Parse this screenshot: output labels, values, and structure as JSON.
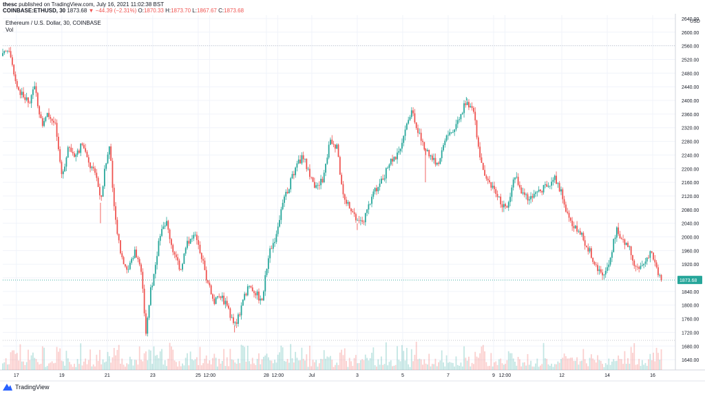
{
  "header": {
    "publisher": "thesc",
    "published_text": "published on TradingView.com, July 16, 2021 11:02:38 BST"
  },
  "quote": {
    "symbol": "COINBASE:ETHUSD, 30",
    "last": "1873.68",
    "change": "▼ −44.39 (−2.31%)",
    "open_label": "O:",
    "open": "1870.33",
    "high_label": "H:",
    "high": "1873.70",
    "low_label": "L:",
    "low": "1867.67",
    "close_label": "C:",
    "close": "1873.68"
  },
  "colors": {
    "up": "#26a69a",
    "down": "#ef5350",
    "grid": "#f0f3fa",
    "price_label_bg": "#26a69a"
  },
  "footer": {
    "brand": "TradingView",
    "logo_icon": "tradingview-logo-icon"
  },
  "chart_data": {
    "type": "candlestick",
    "title": "Ethereum / U.S. Dollar, 30, COINBASE",
    "volume_label": "Vol",
    "ylabel": "USD",
    "ylim": [
      1610,
      2650
    ],
    "y_ticks": [
      1640,
      1680,
      1720,
      1760,
      1800,
      1840,
      1880,
      1920,
      1960,
      2000,
      2040,
      2080,
      2120,
      2160,
      2200,
      2240,
      2280,
      2320,
      2360,
      2400,
      2440,
      2480,
      2520,
      2560,
      2600,
      2640
    ],
    "y_tick_labels": [
      "1640.00",
      "1680.00",
      "1720.00",
      "1760.00",
      "1800.00",
      "1840.00",
      "1880.00",
      "1920.00",
      "1960.00",
      "2000.00",
      "2040.00",
      "2080.00",
      "2120.00",
      "2160.00",
      "2200.00",
      "2240.00",
      "2280.00",
      "2320.00",
      "2360.00",
      "2400.00",
      "2440.00",
      "2480.00",
      "2520.00",
      "2560.00",
      "2600.00",
      "2640.00"
    ],
    "x_ticks": [
      {
        "label": "17",
        "t": 0.6
      },
      {
        "label": "19",
        "t": 2.6
      },
      {
        "label": "21",
        "t": 4.6
      },
      {
        "label": "23",
        "t": 6.6
      },
      {
        "label": "25",
        "t": 8.6
      },
      {
        "label": "12:00",
        "t": 9.1
      },
      {
        "label": "28",
        "t": 11.6
      },
      {
        "label": "12:00",
        "t": 12.1
      },
      {
        "label": "Jul",
        "t": 13.6
      },
      {
        "label": "3",
        "t": 15.6
      },
      {
        "label": "5",
        "t": 17.6
      },
      {
        "label": "7",
        "t": 19.6
      },
      {
        "label": "9",
        "t": 21.6
      },
      {
        "label": "12:00",
        "t": 22.1
      },
      {
        "label": "12",
        "t": 24.6
      },
      {
        "label": "14",
        "t": 26.6
      },
      {
        "label": "16",
        "t": 28.6
      }
    ],
    "x_range": [
      0,
      29.6
    ],
    "reference_lines": {
      "period_high": 2560,
      "last_close": 1873.68
    },
    "last_price_label": "1873.68",
    "price_path": [
      [
        0.0,
        2530
      ],
      [
        0.3,
        2555
      ],
      [
        0.6,
        2445
      ],
      [
        0.9,
        2410
      ],
      [
        1.2,
        2390
      ],
      [
        1.4,
        2450
      ],
      [
        1.7,
        2330
      ],
      [
        2.0,
        2360
      ],
      [
        2.3,
        2330
      ],
      [
        2.6,
        2180
      ],
      [
        2.9,
        2260
      ],
      [
        3.2,
        2240
      ],
      [
        3.5,
        2270
      ],
      [
        3.8,
        2210
      ],
      [
        4.1,
        2190
      ],
      [
        4.3,
        2100
      ],
      [
        4.5,
        2200
      ],
      [
        4.7,
        2270
      ],
      [
        4.9,
        2080
      ],
      [
        5.2,
        1950
      ],
      [
        5.5,
        1900
      ],
      [
        5.8,
        1960
      ],
      [
        6.1,
        1890
      ],
      [
        6.3,
        1720
      ],
      [
        6.5,
        1840
      ],
      [
        6.7,
        1900
      ],
      [
        6.9,
        2010
      ],
      [
        7.2,
        2040
      ],
      [
        7.5,
        1960
      ],
      [
        7.8,
        1900
      ],
      [
        8.1,
        1980
      ],
      [
        8.4,
        2010
      ],
      [
        8.7,
        1960
      ],
      [
        9.0,
        1870
      ],
      [
        9.3,
        1810
      ],
      [
        9.6,
        1830
      ],
      [
        9.9,
        1790
      ],
      [
        10.2,
        1740
      ],
      [
        10.5,
        1790
      ],
      [
        10.8,
        1860
      ],
      [
        11.1,
        1840
      ],
      [
        11.4,
        1810
      ],
      [
        11.7,
        1950
      ],
      [
        12.0,
        2000
      ],
      [
        12.3,
        2090
      ],
      [
        12.6,
        2150
      ],
      [
        12.9,
        2200
      ],
      [
        13.2,
        2240
      ],
      [
        13.5,
        2180
      ],
      [
        13.8,
        2140
      ],
      [
        14.1,
        2170
      ],
      [
        14.4,
        2280
      ],
      [
        14.7,
        2260
      ],
      [
        15.0,
        2110
      ],
      [
        15.3,
        2090
      ],
      [
        15.6,
        2040
      ],
      [
        15.9,
        2050
      ],
      [
        16.2,
        2110
      ],
      [
        16.5,
        2150
      ],
      [
        16.8,
        2180
      ],
      [
        17.1,
        2230
      ],
      [
        17.4,
        2240
      ],
      [
        17.7,
        2320
      ],
      [
        18.0,
        2370
      ],
      [
        18.3,
        2300
      ],
      [
        18.6,
        2260
      ],
      [
        18.9,
        2230
      ],
      [
        19.2,
        2210
      ],
      [
        19.5,
        2300
      ],
      [
        19.8,
        2310
      ],
      [
        20.1,
        2350
      ],
      [
        20.4,
        2400
      ],
      [
        20.7,
        2370
      ],
      [
        21.0,
        2240
      ],
      [
        21.3,
        2160
      ],
      [
        21.6,
        2140
      ],
      [
        21.9,
        2100
      ],
      [
        22.2,
        2080
      ],
      [
        22.5,
        2190
      ],
      [
        22.8,
        2130
      ],
      [
        23.1,
        2110
      ],
      [
        23.4,
        2120
      ],
      [
        23.7,
        2140
      ],
      [
        24.0,
        2150
      ],
      [
        24.3,
        2170
      ],
      [
        24.6,
        2130
      ],
      [
        24.9,
        2050
      ],
      [
        25.2,
        2030
      ],
      [
        25.5,
        2000
      ],
      [
        25.8,
        1960
      ],
      [
        26.1,
        1920
      ],
      [
        26.4,
        1880
      ],
      [
        26.7,
        1930
      ],
      [
        27.0,
        2020
      ],
      [
        27.3,
        1990
      ],
      [
        27.6,
        1960
      ],
      [
        27.9,
        1900
      ],
      [
        28.2,
        1920
      ],
      [
        28.5,
        1960
      ],
      [
        28.8,
        1900
      ],
      [
        29.0,
        1873.68
      ]
    ],
    "y_markers": [
      {
        "t": 4.3,
        "price": 2040
      },
      {
        "t": 6.3,
        "price": 1710
      },
      {
        "t": 10.2,
        "price": 1720
      },
      {
        "t": 15.6,
        "price": 2020
      },
      {
        "t": 18.6,
        "price": 2160
      },
      {
        "t": 20.4,
        "price": 2410
      }
    ]
  }
}
